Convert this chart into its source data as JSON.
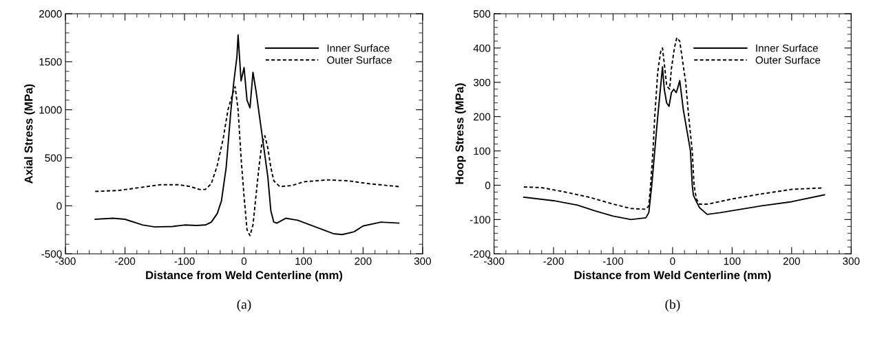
{
  "chart_data": [
    {
      "type": "line",
      "xlabel": "Distance from Weld Centerline (mm)",
      "ylabel": "Axial Stress (MPa)",
      "annotations": [
        "(a)"
      ],
      "xlim": [
        -300,
        300
      ],
      "ylim": [
        -500,
        2000
      ],
      "xticks": [
        -300,
        -200,
        -100,
        0,
        100,
        200,
        300
      ],
      "yticks": [
        -500,
        0,
        500,
        1000,
        1500,
        2000
      ],
      "grid": false,
      "legend": "top right",
      "marker": "none",
      "series": [
        {
          "name": "Inner Surface",
          "color": "#000000",
          "line_style": "solid",
          "x": [
            -250,
            -220,
            -200,
            -170,
            -150,
            -120,
            -100,
            -80,
            -65,
            -55,
            -45,
            -38,
            -30,
            -22,
            -17,
            -12,
            -10,
            -5,
            0,
            5,
            10,
            15,
            20,
            30,
            40,
            45,
            50,
            55,
            70,
            90,
            120,
            150,
            165,
            185,
            200,
            230,
            260
          ],
          "values": [
            -140,
            -130,
            -140,
            -200,
            -220,
            -215,
            -200,
            -205,
            -200,
            -170,
            -80,
            50,
            400,
            1000,
            1300,
            1550,
            1780,
            1300,
            1440,
            1100,
            1020,
            1390,
            1200,
            750,
            300,
            -50,
            -170,
            -180,
            -130,
            -150,
            -220,
            -290,
            -300,
            -270,
            -210,
            -170,
            -180
          ]
        },
        {
          "name": "Outer Surface",
          "color": "#000000",
          "line_style": "dashed",
          "x": [
            -250,
            -210,
            -175,
            -140,
            -110,
            -90,
            -75,
            -65,
            -55,
            -45,
            -35,
            -27,
            -20,
            -15,
            -10,
            -5,
            0,
            5,
            10,
            15,
            20,
            25,
            30,
            35,
            40,
            45,
            50,
            60,
            80,
            100,
            140,
            175,
            210,
            260
          ],
          "values": [
            150,
            160,
            190,
            220,
            220,
            200,
            170,
            170,
            230,
            420,
            700,
            1000,
            1150,
            1240,
            1000,
            500,
            100,
            -250,
            -310,
            -200,
            100,
            400,
            650,
            730,
            600,
            400,
            260,
            200,
            210,
            250,
            270,
            260,
            230,
            200
          ]
        }
      ]
    },
    {
      "type": "line",
      "xlabel": "Distance from Weld Centerline (mm)",
      "ylabel": "Hoop Stress (MPa)",
      "annotations": [
        "(b)"
      ],
      "xlim": [
        -300,
        300
      ],
      "ylim": [
        -200,
        500
      ],
      "xticks": [
        -300,
        -200,
        -100,
        0,
        100,
        200,
        300
      ],
      "yticks": [
        -200,
        -100,
        0,
        100,
        200,
        300,
        400,
        500
      ],
      "grid": false,
      "legend": "top right",
      "marker": "none",
      "series": [
        {
          "name": "Inner Surface",
          "color": "#000000",
          "line_style": "solid",
          "x": [
            -250,
            -200,
            -160,
            -130,
            -100,
            -70,
            -60,
            -45,
            -40,
            -35,
            -30,
            -25,
            -20,
            -17,
            -14,
            -10,
            -6,
            -2,
            2,
            6,
            8,
            12,
            18,
            25,
            30,
            33,
            35,
            45,
            58,
            80,
            150,
            200,
            255
          ],
          "values": [
            -35,
            -45,
            -58,
            -75,
            -90,
            -100,
            -98,
            -95,
            -80,
            0,
            100,
            200,
            290,
            345,
            280,
            240,
            230,
            270,
            280,
            270,
            280,
            305,
            220,
            150,
            100,
            0,
            -30,
            -65,
            -85,
            -80,
            -60,
            -48,
            -28
          ]
        },
        {
          "name": "Outer Surface",
          "color": "#000000",
          "line_style": "dashed",
          "x": [
            -250,
            -220,
            -180,
            -140,
            -100,
            -70,
            -45,
            -40,
            -37,
            -33,
            -30,
            -25,
            -20,
            -17,
            -13,
            -10,
            -5,
            -2,
            3,
            7,
            12,
            17,
            22,
            27,
            33,
            36,
            40,
            45,
            60,
            100,
            150,
            200,
            250
          ],
          "values": [
            -5,
            -7,
            -20,
            -35,
            -55,
            -68,
            -70,
            -60,
            0,
            100,
            200,
            330,
            390,
            400,
            340,
            290,
            280,
            340,
            400,
            430,
            420,
            360,
            300,
            200,
            100,
            0,
            -40,
            -55,
            -55,
            -40,
            -25,
            -12,
            -8
          ]
        }
      ]
    }
  ]
}
